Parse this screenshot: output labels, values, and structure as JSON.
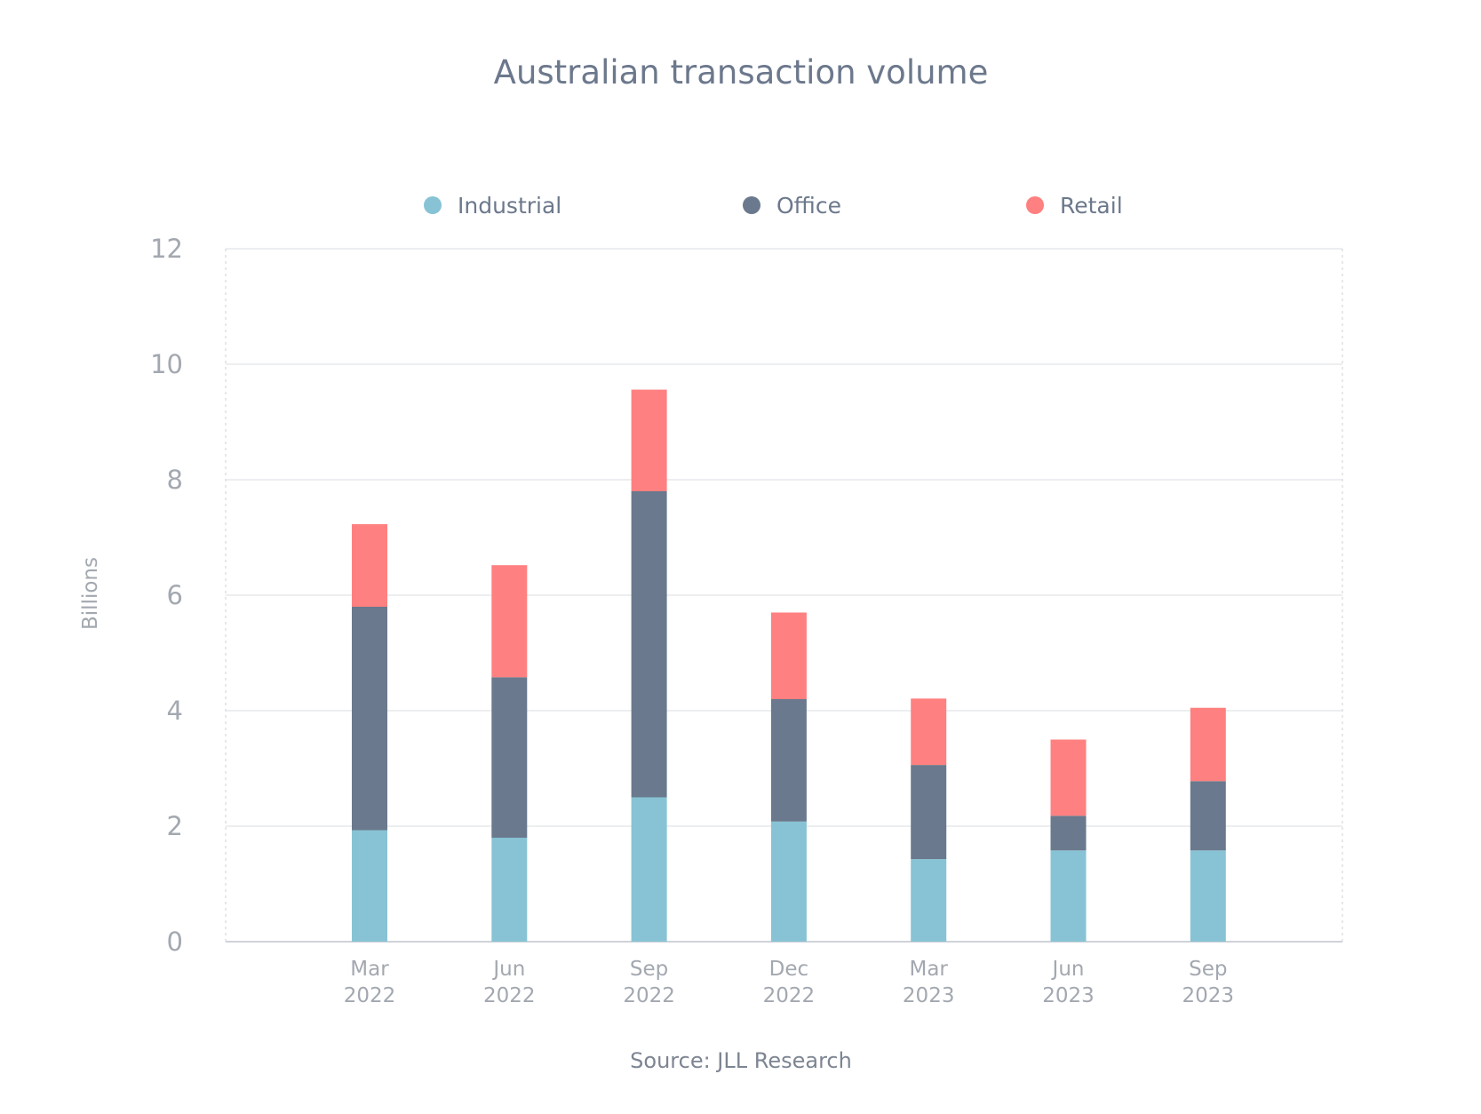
{
  "chart_data": {
    "type": "bar",
    "stacked": true,
    "title": "Australian transaction volume",
    "ylabel": "Billions",
    "xlabel": "",
    "ylim": [
      0,
      12
    ],
    "yticks": [
      "0",
      "2",
      "4",
      "6",
      "8",
      "10",
      "12"
    ],
    "categories": [
      [
        "Mar",
        "2022"
      ],
      [
        "Jun",
        "2022"
      ],
      [
        "Sep",
        "2022"
      ],
      [
        "Dec",
        "2022"
      ],
      [
        "Mar",
        "2023"
      ],
      [
        "Jun",
        "2023"
      ],
      [
        "Sep",
        "2023"
      ]
    ],
    "series": [
      {
        "name": "Industrial",
        "color": "#87c3d4",
        "values": [
          1.93,
          1.8,
          2.5,
          2.08,
          1.43,
          1.58,
          1.58
        ]
      },
      {
        "name": "Office",
        "color": "#6a798d",
        "values": [
          3.87,
          2.78,
          5.3,
          2.12,
          1.63,
          0.6,
          1.2
        ]
      },
      {
        "name": "Retail",
        "color": "#ff8080",
        "values": [
          1.43,
          1.94,
          1.76,
          1.5,
          1.15,
          1.32,
          1.27
        ]
      }
    ],
    "grid": true,
    "legend_position": "top",
    "source": "Source: JLL Research"
  }
}
